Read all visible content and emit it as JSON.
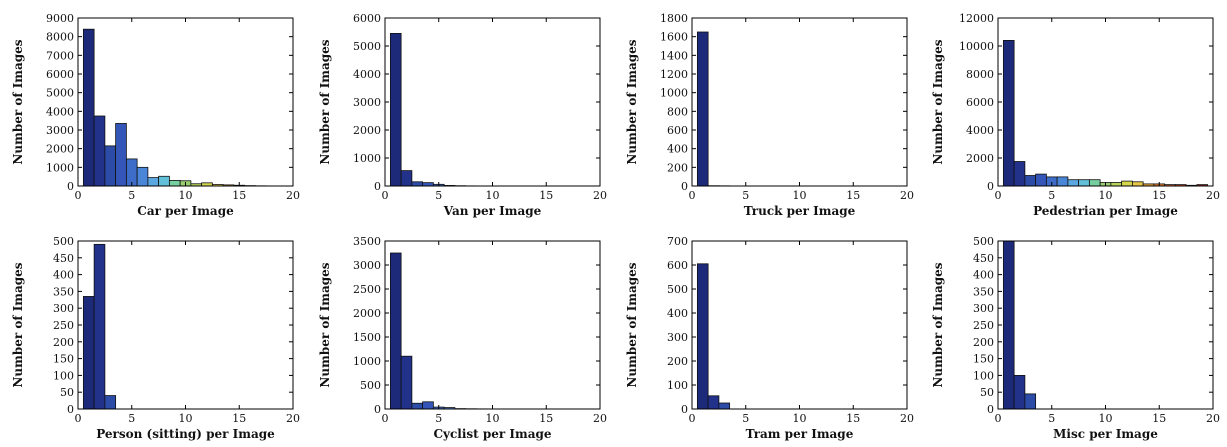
{
  "chart_data": [
    {
      "type": "bar",
      "xlabel": "Car per Image",
      "ylabel": "Number of Images",
      "xlim": [
        0,
        20
      ],
      "ylim": [
        0,
        9000
      ],
      "xticks": [
        0,
        5,
        10,
        15,
        20
      ],
      "yticks": [
        0,
        1000,
        2000,
        3000,
        4000,
        5000,
        6000,
        7000,
        8000,
        9000
      ],
      "x": [
        1,
        2,
        3,
        4,
        5,
        6,
        7,
        8,
        9,
        10,
        11,
        12,
        13,
        14,
        15,
        16,
        17,
        18,
        19
      ],
      "values": [
        8400,
        3750,
        2150,
        3350,
        1450,
        1000,
        450,
        520,
        300,
        280,
        120,
        170,
        80,
        60,
        40,
        20,
        10,
        5,
        5
      ],
      "colors": [
        "#1d2a7a",
        "#22318a",
        "#2d4ca8",
        "#3456b8",
        "#3e6dc9",
        "#4a86d8",
        "#5aa8df",
        "#63c0d9",
        "#76cfa0",
        "#97cf6d",
        "#b8d35a",
        "#d4d64e",
        "#e6c747",
        "#eaa63c",
        "#e67d33",
        "#df5a2b",
        "#d23b25",
        "#b92a22",
        "#9a2020"
      ],
      "grid": false,
      "legend": false
    },
    {
      "type": "bar",
      "xlabel": "Van per Image",
      "ylabel": "Number of Images",
      "xlim": [
        0,
        20
      ],
      "ylim": [
        0,
        6000
      ],
      "xticks": [
        0,
        5,
        10,
        15,
        20
      ],
      "yticks": [
        0,
        1000,
        2000,
        3000,
        4000,
        5000,
        6000
      ],
      "x": [
        1,
        2,
        3,
        4,
        5,
        6,
        7,
        8,
        9,
        10,
        11,
        12,
        13,
        14,
        15,
        16,
        17,
        18,
        19
      ],
      "values": [
        5450,
        550,
        150,
        120,
        60,
        20,
        10,
        5,
        3,
        2,
        2,
        2,
        2,
        2,
        2,
        2,
        2,
        2,
        2
      ],
      "colors": [
        "#1d2a7a",
        "#22318a",
        "#2d4ca8",
        "#3456b8",
        "#3e6dc9",
        "#4a86d8",
        "#5aa8df",
        "#63c0d9",
        "#76cfa0",
        "#97cf6d",
        "#b8d35a",
        "#d4d64e",
        "#e6c747",
        "#eaa63c",
        "#e67d33",
        "#df5a2b",
        "#d23b25",
        "#b92a22",
        "#9a2020"
      ],
      "grid": false,
      "legend": false
    },
    {
      "type": "bar",
      "xlabel": "Truck per Image",
      "ylabel": "Number of Images",
      "xlim": [
        0,
        20
      ],
      "ylim": [
        0,
        1800
      ],
      "xticks": [
        0,
        5,
        10,
        15,
        20
      ],
      "yticks": [
        0,
        200,
        400,
        600,
        800,
        1000,
        1200,
        1400,
        1600,
        1800
      ],
      "x": [
        1,
        2,
        3,
        4,
        5,
        6,
        7,
        8,
        9,
        10,
        11,
        12,
        13,
        14,
        15,
        16,
        17,
        18,
        19
      ],
      "values": [
        1650,
        3,
        2,
        1,
        1,
        1,
        1,
        1,
        1,
        1,
        1,
        1,
        1,
        1,
        1,
        1,
        1,
        1,
        1
      ],
      "colors": [
        "#1d2a7a",
        "#22318a",
        "#2d4ca8",
        "#3456b8",
        "#3e6dc9",
        "#4a86d8",
        "#5aa8df",
        "#63c0d9",
        "#76cfa0",
        "#97cf6d",
        "#b8d35a",
        "#d4d64e",
        "#e6c747",
        "#eaa63c",
        "#e67d33",
        "#df5a2b",
        "#d23b25",
        "#b92a22",
        "#9a2020"
      ],
      "grid": false,
      "legend": false
    },
    {
      "type": "bar",
      "xlabel": "Pedestrian per Image",
      "ylabel": "Number of Images",
      "xlim": [
        0,
        20
      ],
      "ylim": [
        0,
        12000
      ],
      "xticks": [
        0,
        5,
        10,
        15,
        20
      ],
      "yticks": [
        0,
        2000,
        4000,
        6000,
        8000,
        10000,
        12000
      ],
      "x": [
        1,
        2,
        3,
        4,
        5,
        6,
        7,
        8,
        9,
        10,
        11,
        12,
        13,
        14,
        15,
        16,
        17,
        18,
        19
      ],
      "values": [
        10400,
        1750,
        750,
        850,
        650,
        650,
        450,
        450,
        450,
        250,
        250,
        350,
        300,
        150,
        150,
        100,
        100,
        50,
        100
      ],
      "colors": [
        "#1d2a7a",
        "#22318a",
        "#2d4ca8",
        "#3456b8",
        "#3e6dc9",
        "#4a86d8",
        "#5aa8df",
        "#63c0d9",
        "#76cfa0",
        "#97cf6d",
        "#b8d35a",
        "#d4d64e",
        "#e6c747",
        "#eaa63c",
        "#e67d33",
        "#df5a2b",
        "#d23b25",
        "#b92a22",
        "#9a2020"
      ],
      "grid": false,
      "legend": false
    },
    {
      "type": "bar",
      "xlabel": "Person (sitting) per Image",
      "ylabel": "Number of Images",
      "xlim": [
        0,
        20
      ],
      "ylim": [
        0,
        500
      ],
      "xticks": [
        0,
        5,
        10,
        15,
        20
      ],
      "yticks": [
        0,
        50,
        100,
        150,
        200,
        250,
        300,
        350,
        400,
        450,
        500
      ],
      "x": [
        1,
        2,
        3
      ],
      "values": [
        335,
        490,
        40
      ],
      "colors": [
        "#1d2a7a",
        "#22318a",
        "#2d4ca8"
      ],
      "grid": false,
      "legend": false
    },
    {
      "type": "bar",
      "xlabel": "Cyclist per Image",
      "ylabel": "Number of Images",
      "xlim": [
        0,
        20
      ],
      "ylim": [
        0,
        3500
      ],
      "xticks": [
        0,
        5,
        10,
        15,
        20
      ],
      "yticks": [
        0,
        500,
        1000,
        1500,
        2000,
        2500,
        3000,
        3500
      ],
      "x": [
        1,
        2,
        3,
        4,
        5,
        6,
        7,
        8,
        9,
        10,
        11,
        12,
        13,
        14,
        15,
        16,
        17,
        18,
        19
      ],
      "values": [
        3250,
        1100,
        120,
        150,
        40,
        30,
        8,
        5,
        3,
        2,
        2,
        2,
        2,
        2,
        2,
        2,
        2,
        2,
        2
      ],
      "colors": [
        "#1d2a7a",
        "#22318a",
        "#2d4ca8",
        "#3456b8",
        "#3e6dc9",
        "#4a86d8",
        "#5aa8df",
        "#63c0d9",
        "#76cfa0",
        "#97cf6d",
        "#b8d35a",
        "#d4d64e",
        "#e6c747",
        "#eaa63c",
        "#e67d33",
        "#df5a2b",
        "#d23b25",
        "#b92a22",
        "#9a2020"
      ],
      "grid": false,
      "legend": false
    },
    {
      "type": "bar",
      "xlabel": "Tram per Image",
      "ylabel": "Number of Images",
      "xlim": [
        0,
        20
      ],
      "ylim": [
        0,
        700
      ],
      "xticks": [
        0,
        5,
        10,
        15,
        20
      ],
      "yticks": [
        0,
        100,
        200,
        300,
        400,
        500,
        600,
        700
      ],
      "x": [
        1,
        2,
        3
      ],
      "values": [
        605,
        55,
        25
      ],
      "colors": [
        "#1d2a7a",
        "#22318a",
        "#2d4ca8"
      ],
      "grid": false,
      "legend": false
    },
    {
      "type": "bar",
      "xlabel": "Misc per Image",
      "ylabel": "Number of Images",
      "xlim": [
        0,
        20
      ],
      "ylim": [
        0,
        500
      ],
      "xticks": [
        0,
        5,
        10,
        15,
        20
      ],
      "yticks": [
        0,
        50,
        100,
        150,
        200,
        250,
        300,
        350,
        400,
        450,
        500
      ],
      "x": [
        1,
        2,
        3
      ],
      "values": [
        500,
        100,
        45
      ],
      "colors": [
        "#1d2a7a",
        "#22318a",
        "#2d4ca8"
      ],
      "grid": false,
      "legend": false
    }
  ]
}
